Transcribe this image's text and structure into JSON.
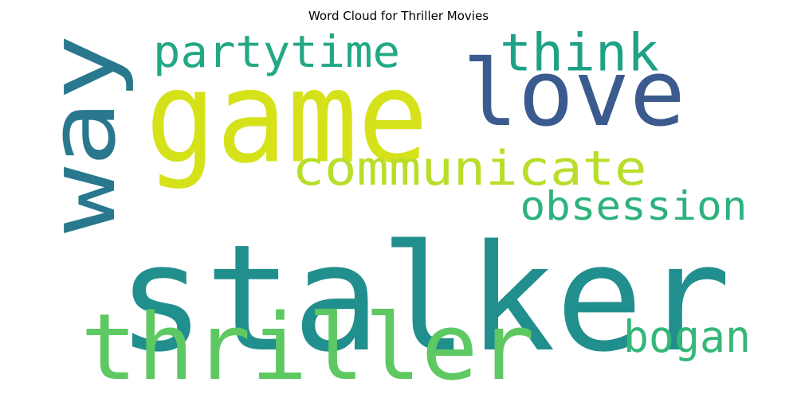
{
  "chart_data": {
    "type": "word_cloud",
    "title": "Word Cloud for Thriller Movies",
    "words": [
      {
        "text": "stalker",
        "color": "#218f8d"
      },
      {
        "text": "game",
        "color": "#d5e21a"
      },
      {
        "text": "thriller",
        "color": "#5ec962"
      },
      {
        "text": "way",
        "color": "#2a788e"
      },
      {
        "text": "love",
        "color": "#3b5a8e"
      },
      {
        "text": "communicate",
        "color": "#b8de29"
      },
      {
        "text": "think",
        "color": "#1fa187"
      },
      {
        "text": "partytime",
        "color": "#22a884"
      },
      {
        "text": "obsession",
        "color": "#2db27d"
      },
      {
        "text": "bogan",
        "color": "#35b779"
      }
    ]
  }
}
